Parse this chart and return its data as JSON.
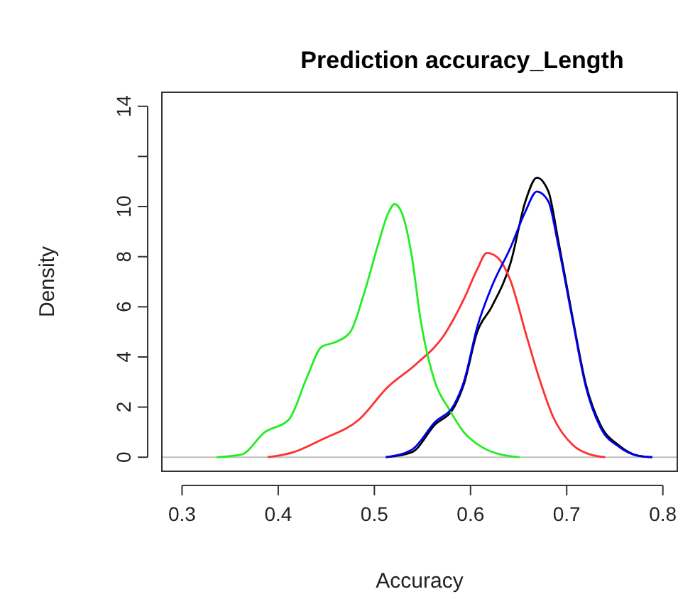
{
  "chart_data": {
    "type": "line",
    "title": "Prediction accuracy_Length",
    "xlabel": "Accuracy",
    "ylabel": "Density",
    "xlim": [
      0.279,
      0.815
    ],
    "ylim": [
      -0.56,
      14.56
    ],
    "xticks": [
      0.3,
      0.4,
      0.5,
      0.6,
      0.7,
      0.8
    ],
    "yticks": [
      0,
      2,
      4,
      6,
      8,
      10,
      {
        "value": 12,
        "label": null
      },
      14
    ],
    "grid": false,
    "ref_lines": [
      {
        "axis": "y",
        "value": 0,
        "color": "#bebebe"
      }
    ],
    "series": [
      {
        "color": "#000000",
        "x": [
          0.512,
          0.539,
          0.563,
          0.583,
          0.593,
          0.607,
          0.622,
          0.642,
          0.657,
          0.669,
          0.681,
          0.691,
          0.706,
          0.72,
          0.735,
          0.755,
          0.775,
          0.789
        ],
        "values": [
          0,
          0.2,
          1.3,
          2.0,
          2.9,
          5.0,
          6.0,
          7.8,
          10.2,
          11.15,
          10.6,
          8.7,
          5.6,
          2.9,
          1.3,
          0.45,
          0.05,
          0
        ]
      },
      {
        "color": "#ff3030",
        "x": [
          0.389,
          0.416,
          0.445,
          0.484,
          0.514,
          0.543,
          0.573,
          0.593,
          0.607,
          0.617,
          0.627,
          0.642,
          0.657,
          0.671,
          0.686,
          0.706,
          0.725,
          0.74
        ],
        "values": [
          0,
          0.2,
          0.7,
          1.5,
          2.8,
          3.7,
          4.9,
          6.3,
          7.5,
          8.15,
          8.0,
          7.0,
          5.0,
          3.2,
          1.6,
          0.5,
          0.1,
          0
        ]
      },
      {
        "color": "#22ee22",
        "x": [
          0.336,
          0.3615,
          0.386,
          0.411,
          0.43,
          0.445,
          0.46,
          0.475,
          0.489,
          0.504,
          0.514,
          0.521,
          0.528,
          0.539,
          0.548,
          0.563,
          0.578,
          0.593,
          0.612,
          0.632,
          0.651
        ],
        "values": [
          0,
          0.1,
          1.0,
          1.5,
          3.2,
          4.4,
          4.6,
          5.0,
          6.5,
          8.5,
          9.7,
          10.1,
          9.8,
          8.0,
          5.5,
          3.0,
          1.9,
          1.0,
          0.4,
          0.1,
          0
        ]
      },
      {
        "color": "#0000ee",
        "x": [
          0.512,
          0.539,
          0.563,
          0.583,
          0.593,
          0.607,
          0.622,
          0.642,
          0.657,
          0.669,
          0.681,
          0.691,
          0.706,
          0.72,
          0.735,
          0.755,
          0.775,
          0.789
        ],
        "values": [
          0,
          0.3,
          1.4,
          2.1,
          3.0,
          5.2,
          6.8,
          8.4,
          9.8,
          10.6,
          10.2,
          8.5,
          5.5,
          2.8,
          1.2,
          0.4,
          0.05,
          0
        ]
      }
    ]
  }
}
